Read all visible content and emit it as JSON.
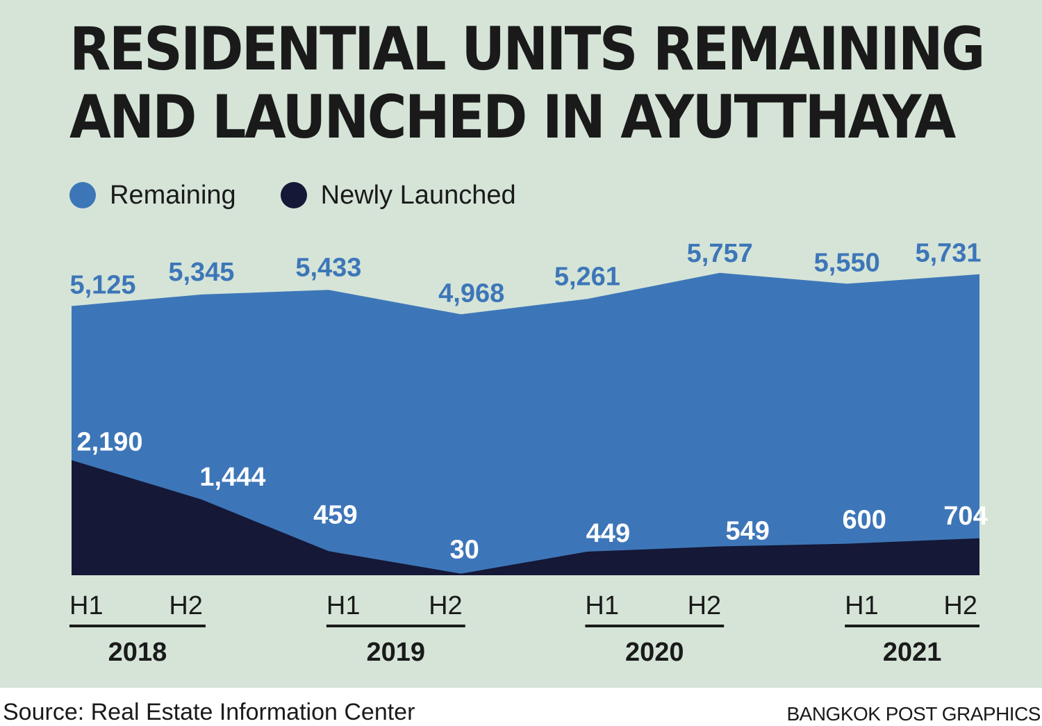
{
  "title": {
    "line1": "RESIDENTIAL UNITS REMAINING",
    "line2": "AND LAUNCHED IN AYUTTHAYA"
  },
  "legend": [
    {
      "label": "Remaining",
      "color": "#3d76b8"
    },
    {
      "label": "Newly Launched",
      "color": "#151836"
    }
  ],
  "chart_data": {
    "type": "area",
    "categories": [
      "H1",
      "H2",
      "H1",
      "H2",
      "H1",
      "H2",
      "H1",
      "H2"
    ],
    "years": [
      "2018",
      "2019",
      "2020",
      "2021"
    ],
    "series": [
      {
        "name": "Remaining",
        "color": "#3d76b8",
        "values": [
          5125,
          5345,
          5433,
          4968,
          5261,
          5757,
          5550,
          5731
        ],
        "labels": [
          "5,125",
          "5,345",
          "5,433",
          "4,968",
          "5,261",
          "5,757",
          "5,550",
          "5,731"
        ],
        "label_color": "#3d76b8"
      },
      {
        "name": "Newly Launched",
        "color": "#151836",
        "values": [
          2190,
          1444,
          459,
          30,
          449,
          549,
          600,
          704
        ],
        "labels": [
          "2,190",
          "1,444",
          "459",
          "30",
          "449",
          "549",
          "600",
          "704"
        ],
        "label_color": "#ffffff"
      }
    ],
    "grid": false,
    "legend_position": "top-left"
  },
  "footer": {
    "source": "Source: Real Estate Information Center",
    "credit": "BANGKOK POST GRAPHICS"
  }
}
